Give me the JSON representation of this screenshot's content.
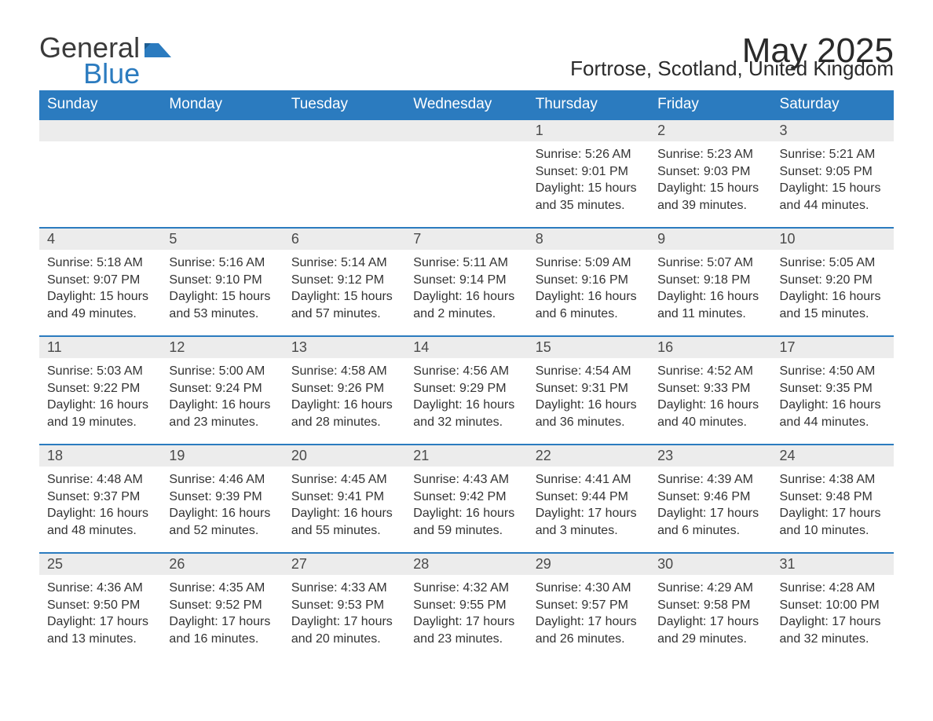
{
  "logo": {
    "part1": "General",
    "part2": "Blue"
  },
  "title": "May 2025",
  "location": "Fortrose, Scotland, United Kingdom",
  "colors": {
    "header_bg": "#2b7bbf",
    "header_text": "#ffffff",
    "daynum_bg": "#ececec",
    "daynum_text": "#4a4a4a",
    "body_text": "#333333",
    "rule": "#2b7bbf",
    "page_bg": "#ffffff",
    "logo_gray": "#3a3a3a",
    "logo_blue": "#2b7bbf"
  },
  "typography": {
    "title_fontsize": 44,
    "location_fontsize": 26,
    "logo_fontsize": 36,
    "dayheader_fontsize": 19,
    "daynum_fontsize": 18,
    "body_fontsize": 16,
    "font_family": "Arial"
  },
  "weekdays": [
    "Sunday",
    "Monday",
    "Tuesday",
    "Wednesday",
    "Thursday",
    "Friday",
    "Saturday"
  ],
  "weeks": [
    [
      {
        "empty": true
      },
      {
        "empty": true
      },
      {
        "empty": true
      },
      {
        "empty": true
      },
      {
        "day": "1",
        "sunrise": "Sunrise: 5:26 AM",
        "sunset": "Sunset: 9:01 PM",
        "dl1": "Daylight: 15 hours",
        "dl2": "and 35 minutes."
      },
      {
        "day": "2",
        "sunrise": "Sunrise: 5:23 AM",
        "sunset": "Sunset: 9:03 PM",
        "dl1": "Daylight: 15 hours",
        "dl2": "and 39 minutes."
      },
      {
        "day": "3",
        "sunrise": "Sunrise: 5:21 AM",
        "sunset": "Sunset: 9:05 PM",
        "dl1": "Daylight: 15 hours",
        "dl2": "and 44 minutes."
      }
    ],
    [
      {
        "day": "4",
        "sunrise": "Sunrise: 5:18 AM",
        "sunset": "Sunset: 9:07 PM",
        "dl1": "Daylight: 15 hours",
        "dl2": "and 49 minutes."
      },
      {
        "day": "5",
        "sunrise": "Sunrise: 5:16 AM",
        "sunset": "Sunset: 9:10 PM",
        "dl1": "Daylight: 15 hours",
        "dl2": "and 53 minutes."
      },
      {
        "day": "6",
        "sunrise": "Sunrise: 5:14 AM",
        "sunset": "Sunset: 9:12 PM",
        "dl1": "Daylight: 15 hours",
        "dl2": "and 57 minutes."
      },
      {
        "day": "7",
        "sunrise": "Sunrise: 5:11 AM",
        "sunset": "Sunset: 9:14 PM",
        "dl1": "Daylight: 16 hours",
        "dl2": "and 2 minutes."
      },
      {
        "day": "8",
        "sunrise": "Sunrise: 5:09 AM",
        "sunset": "Sunset: 9:16 PM",
        "dl1": "Daylight: 16 hours",
        "dl2": "and 6 minutes."
      },
      {
        "day": "9",
        "sunrise": "Sunrise: 5:07 AM",
        "sunset": "Sunset: 9:18 PM",
        "dl1": "Daylight: 16 hours",
        "dl2": "and 11 minutes."
      },
      {
        "day": "10",
        "sunrise": "Sunrise: 5:05 AM",
        "sunset": "Sunset: 9:20 PM",
        "dl1": "Daylight: 16 hours",
        "dl2": "and 15 minutes."
      }
    ],
    [
      {
        "day": "11",
        "sunrise": "Sunrise: 5:03 AM",
        "sunset": "Sunset: 9:22 PM",
        "dl1": "Daylight: 16 hours",
        "dl2": "and 19 minutes."
      },
      {
        "day": "12",
        "sunrise": "Sunrise: 5:00 AM",
        "sunset": "Sunset: 9:24 PM",
        "dl1": "Daylight: 16 hours",
        "dl2": "and 23 minutes."
      },
      {
        "day": "13",
        "sunrise": "Sunrise: 4:58 AM",
        "sunset": "Sunset: 9:26 PM",
        "dl1": "Daylight: 16 hours",
        "dl2": "and 28 minutes."
      },
      {
        "day": "14",
        "sunrise": "Sunrise: 4:56 AM",
        "sunset": "Sunset: 9:29 PM",
        "dl1": "Daylight: 16 hours",
        "dl2": "and 32 minutes."
      },
      {
        "day": "15",
        "sunrise": "Sunrise: 4:54 AM",
        "sunset": "Sunset: 9:31 PM",
        "dl1": "Daylight: 16 hours",
        "dl2": "and 36 minutes."
      },
      {
        "day": "16",
        "sunrise": "Sunrise: 4:52 AM",
        "sunset": "Sunset: 9:33 PM",
        "dl1": "Daylight: 16 hours",
        "dl2": "and 40 minutes."
      },
      {
        "day": "17",
        "sunrise": "Sunrise: 4:50 AM",
        "sunset": "Sunset: 9:35 PM",
        "dl1": "Daylight: 16 hours",
        "dl2": "and 44 minutes."
      }
    ],
    [
      {
        "day": "18",
        "sunrise": "Sunrise: 4:48 AM",
        "sunset": "Sunset: 9:37 PM",
        "dl1": "Daylight: 16 hours",
        "dl2": "and 48 minutes."
      },
      {
        "day": "19",
        "sunrise": "Sunrise: 4:46 AM",
        "sunset": "Sunset: 9:39 PM",
        "dl1": "Daylight: 16 hours",
        "dl2": "and 52 minutes."
      },
      {
        "day": "20",
        "sunrise": "Sunrise: 4:45 AM",
        "sunset": "Sunset: 9:41 PM",
        "dl1": "Daylight: 16 hours",
        "dl2": "and 55 minutes."
      },
      {
        "day": "21",
        "sunrise": "Sunrise: 4:43 AM",
        "sunset": "Sunset: 9:42 PM",
        "dl1": "Daylight: 16 hours",
        "dl2": "and 59 minutes."
      },
      {
        "day": "22",
        "sunrise": "Sunrise: 4:41 AM",
        "sunset": "Sunset: 9:44 PM",
        "dl1": "Daylight: 17 hours",
        "dl2": "and 3 minutes."
      },
      {
        "day": "23",
        "sunrise": "Sunrise: 4:39 AM",
        "sunset": "Sunset: 9:46 PM",
        "dl1": "Daylight: 17 hours",
        "dl2": "and 6 minutes."
      },
      {
        "day": "24",
        "sunrise": "Sunrise: 4:38 AM",
        "sunset": "Sunset: 9:48 PM",
        "dl1": "Daylight: 17 hours",
        "dl2": "and 10 minutes."
      }
    ],
    [
      {
        "day": "25",
        "sunrise": "Sunrise: 4:36 AM",
        "sunset": "Sunset: 9:50 PM",
        "dl1": "Daylight: 17 hours",
        "dl2": "and 13 minutes."
      },
      {
        "day": "26",
        "sunrise": "Sunrise: 4:35 AM",
        "sunset": "Sunset: 9:52 PM",
        "dl1": "Daylight: 17 hours",
        "dl2": "and 16 minutes."
      },
      {
        "day": "27",
        "sunrise": "Sunrise: 4:33 AM",
        "sunset": "Sunset: 9:53 PM",
        "dl1": "Daylight: 17 hours",
        "dl2": "and 20 minutes."
      },
      {
        "day": "28",
        "sunrise": "Sunrise: 4:32 AM",
        "sunset": "Sunset: 9:55 PM",
        "dl1": "Daylight: 17 hours",
        "dl2": "and 23 minutes."
      },
      {
        "day": "29",
        "sunrise": "Sunrise: 4:30 AM",
        "sunset": "Sunset: 9:57 PM",
        "dl1": "Daylight: 17 hours",
        "dl2": "and 26 minutes."
      },
      {
        "day": "30",
        "sunrise": "Sunrise: 4:29 AM",
        "sunset": "Sunset: 9:58 PM",
        "dl1": "Daylight: 17 hours",
        "dl2": "and 29 minutes."
      },
      {
        "day": "31",
        "sunrise": "Sunrise: 4:28 AM",
        "sunset": "Sunset: 10:00 PM",
        "dl1": "Daylight: 17 hours",
        "dl2": "and 32 minutes."
      }
    ]
  ]
}
